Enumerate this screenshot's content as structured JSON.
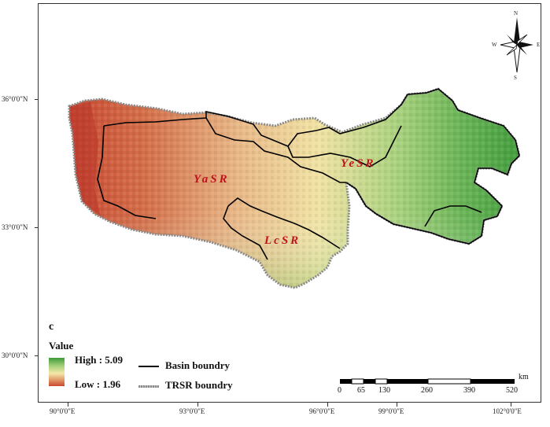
{
  "panel_label": "c",
  "latitude_labels": [
    "36°0'0\"N",
    "33°0'0\"N",
    "30°0'0\"N"
  ],
  "longitude_labels": [
    "90°0'0\"E",
    "93°0'0\"E",
    "96°0'0\"E",
    "99°0'0\"E",
    "102°0'0\"E"
  ],
  "basins": {
    "yasr": "YaSR",
    "yesr": "YeSR",
    "lcsr": "LcSR"
  },
  "legend": {
    "title": "Value",
    "high": "High : 5.09",
    "low": "Low : 1.96",
    "basin_line": "Basin boundry",
    "trsr_line": "TRSR boundry",
    "high_color": "#3e9a3a",
    "mid_color": "#f3e7a8",
    "low_color": "#c84630"
  },
  "compass": {
    "north": "N",
    "south": "S",
    "east": "E",
    "west": "W"
  },
  "scale_bar": {
    "unit": "km",
    "ticks": [
      "0",
      "65",
      "130",
      "260",
      "390",
      "520"
    ]
  }
}
